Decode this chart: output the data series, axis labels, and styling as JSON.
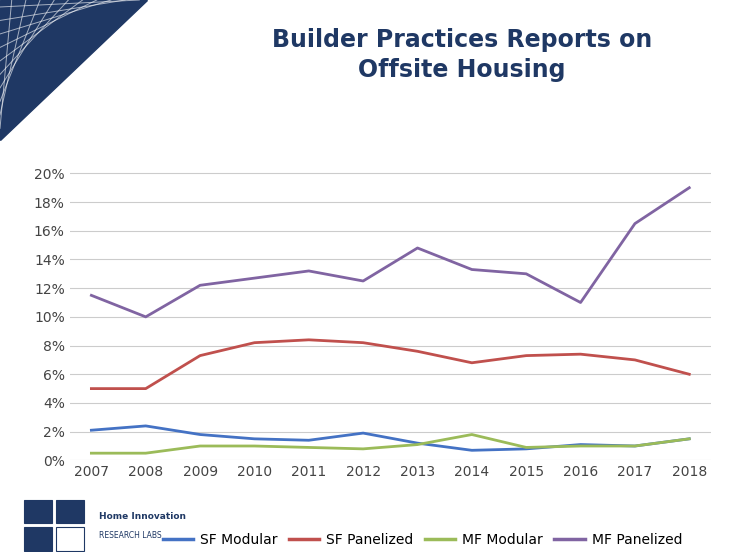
{
  "title_line1": "Builder Practices Reports on",
  "title_line2": "Offsite Housing",
  "title_color": "#1F3864",
  "years": [
    2007,
    2008,
    2009,
    2010,
    2011,
    2012,
    2013,
    2014,
    2015,
    2016,
    2017,
    2018
  ],
  "sf_modular": [
    0.021,
    0.024,
    0.018,
    0.015,
    0.014,
    0.019,
    0.012,
    0.007,
    0.008,
    0.011,
    0.01,
    0.015
  ],
  "sf_panelized": [
    0.05,
    0.05,
    0.073,
    0.082,
    0.084,
    0.082,
    0.076,
    0.068,
    0.073,
    0.074,
    0.07,
    0.06
  ],
  "mf_modular": [
    0.005,
    0.005,
    0.01,
    0.01,
    0.009,
    0.008,
    0.011,
    0.018,
    0.009,
    0.01,
    0.01,
    0.015
  ],
  "mf_panelized": [
    0.115,
    0.1,
    0.122,
    0.127,
    0.132,
    0.125,
    0.148,
    0.133,
    0.13,
    0.11,
    0.165,
    0.19
  ],
  "sf_modular_color": "#4472C4",
  "sf_panelized_color": "#C0504D",
  "mf_modular_color": "#9BBB59",
  "mf_panelized_color": "#8064A2",
  "line_width": 2.0,
  "ylim": [
    0,
    0.21
  ],
  "yticks": [
    0.0,
    0.02,
    0.04,
    0.06,
    0.08,
    0.1,
    0.12,
    0.14,
    0.16,
    0.18,
    0.2
  ],
  "bg_color": "#FFFFFF",
  "plot_bg_color": "#FFFFFF",
  "grid_color": "#CCCCCC",
  "legend_labels": [
    "SF Modular",
    "SF Panelized",
    "MF Modular",
    "MF Panelized"
  ],
  "title_fontsize": 17,
  "tick_fontsize": 10,
  "deco_blue": "#1F3864",
  "deco_line_color": "#C8CDD6"
}
